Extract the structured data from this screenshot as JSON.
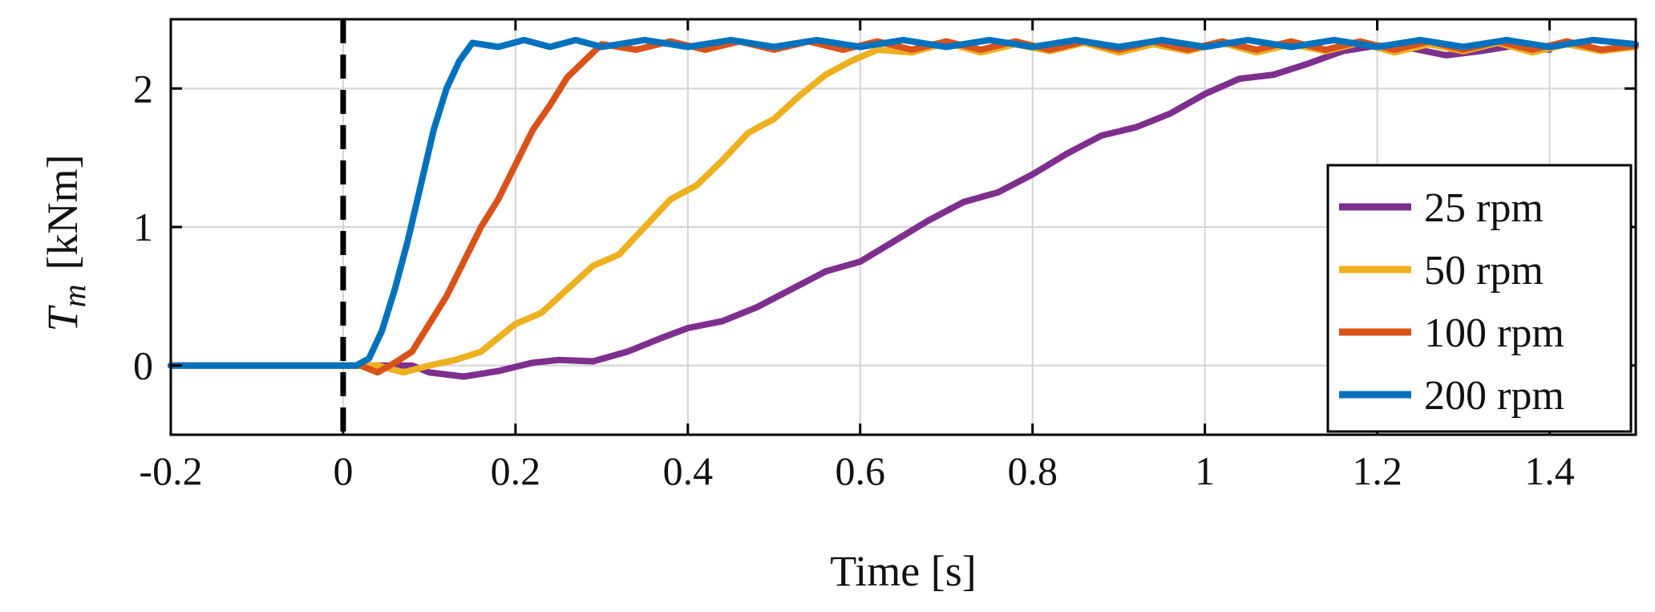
{
  "chart_data": {
    "type": "line",
    "title": "",
    "xlabel": "Time [s]",
    "ylabel_symbol": "T",
    "ylabel_subscript": "m",
    "ylabel_unit": "[kNm]",
    "xlim": [
      -0.2,
      1.5
    ],
    "ylim": [
      -0.5,
      2.5
    ],
    "x_ticks": [
      -0.2,
      0,
      0.2,
      0.4,
      0.6,
      0.8,
      1,
      1.2,
      1.4
    ],
    "x_tick_labels": [
      "-0.2",
      "0",
      "0.2",
      "0.4",
      "0.6",
      "0.8",
      "1",
      "1.2",
      "1.4"
    ],
    "y_ticks": [
      0,
      1,
      2
    ],
    "y_tick_labels": [
      "0",
      "1",
      "2"
    ],
    "grid": true,
    "legend_position": "bottom-right",
    "vline": {
      "x": 0,
      "style": "dashed",
      "color": "#000000"
    },
    "series": [
      {
        "name": "25 rpm",
        "color": "#7E2F8E",
        "x": [
          -0.2,
          -0.1,
          0.0,
          0.05,
          0.08,
          0.1,
          0.14,
          0.18,
          0.22,
          0.25,
          0.29,
          0.33,
          0.37,
          0.4,
          0.44,
          0.48,
          0.52,
          0.56,
          0.6,
          0.64,
          0.68,
          0.72,
          0.76,
          0.8,
          0.84,
          0.88,
          0.92,
          0.96,
          1.0,
          1.04,
          1.08,
          1.12,
          1.16,
          1.2,
          1.24,
          1.28,
          1.32,
          1.36,
          1.4
        ],
        "y": [
          0,
          0,
          0,
          0,
          0,
          -0.05,
          -0.08,
          -0.04,
          0.02,
          0.04,
          0.03,
          0.1,
          0.2,
          0.27,
          0.32,
          0.42,
          0.55,
          0.68,
          0.75,
          0.9,
          1.05,
          1.18,
          1.25,
          1.38,
          1.53,
          1.66,
          1.72,
          1.82,
          1.96,
          2.07,
          2.1,
          2.18,
          2.27,
          2.31,
          2.29,
          2.24,
          2.27,
          2.31,
          2.28
        ]
      },
      {
        "name": "50 rpm",
        "color": "#EDB120",
        "x": [
          -0.2,
          0.0,
          0.04,
          0.07,
          0.1,
          0.13,
          0.16,
          0.2,
          0.23,
          0.26,
          0.29,
          0.32,
          0.35,
          0.38,
          0.41,
          0.44,
          0.47,
          0.5,
          0.53,
          0.56,
          0.59,
          0.62,
          0.66,
          0.7,
          0.74,
          0.78,
          0.82,
          0.86,
          0.9,
          0.94,
          0.98,
          1.02,
          1.06,
          1.1,
          1.14,
          1.18,
          1.22,
          1.26,
          1.3,
          1.34,
          1.38,
          1.42,
          1.46,
          1.5
        ],
        "y": [
          0,
          0,
          0,
          -0.05,
          0,
          0.04,
          0.1,
          0.3,
          0.38,
          0.55,
          0.72,
          0.8,
          1.0,
          1.2,
          1.3,
          1.48,
          1.68,
          1.78,
          1.95,
          2.1,
          2.2,
          2.28,
          2.26,
          2.33,
          2.26,
          2.32,
          2.27,
          2.33,
          2.26,
          2.32,
          2.27,
          2.33,
          2.26,
          2.32,
          2.27,
          2.33,
          2.26,
          2.32,
          2.27,
          2.33,
          2.26,
          2.32,
          2.27,
          2.3
        ]
      },
      {
        "name": "100 rpm",
        "color": "#D95319",
        "x": [
          -0.2,
          0.0,
          0.02,
          0.04,
          0.06,
          0.08,
          0.1,
          0.12,
          0.14,
          0.16,
          0.18,
          0.2,
          0.22,
          0.24,
          0.26,
          0.28,
          0.3,
          0.34,
          0.38,
          0.42,
          0.46,
          0.5,
          0.54,
          0.58,
          0.62,
          0.66,
          0.7,
          0.74,
          0.78,
          0.82,
          0.86,
          0.9,
          0.94,
          0.98,
          1.02,
          1.06,
          1.1,
          1.14,
          1.18,
          1.22,
          1.26,
          1.3,
          1.34,
          1.38,
          1.42,
          1.46,
          1.5
        ],
        "y": [
          0,
          0,
          0,
          -0.05,
          0.02,
          0.1,
          0.3,
          0.5,
          0.75,
          1.0,
          1.2,
          1.45,
          1.7,
          1.88,
          2.08,
          2.2,
          2.32,
          2.28,
          2.34,
          2.28,
          2.34,
          2.28,
          2.34,
          2.28,
          2.34,
          2.28,
          2.34,
          2.28,
          2.34,
          2.28,
          2.34,
          2.28,
          2.34,
          2.28,
          2.34,
          2.28,
          2.34,
          2.28,
          2.34,
          2.28,
          2.34,
          2.28,
          2.34,
          2.28,
          2.34,
          2.28,
          2.31
        ]
      },
      {
        "name": "200 rpm",
        "color": "#0072BD",
        "x": [
          -0.2,
          0.0,
          0.015,
          0.03,
          0.045,
          0.06,
          0.075,
          0.09,
          0.105,
          0.12,
          0.135,
          0.15,
          0.18,
          0.21,
          0.24,
          0.27,
          0.3,
          0.35,
          0.4,
          0.45,
          0.5,
          0.55,
          0.6,
          0.65,
          0.7,
          0.75,
          0.8,
          0.85,
          0.9,
          0.95,
          1.0,
          1.05,
          1.1,
          1.15,
          1.2,
          1.25,
          1.3,
          1.35,
          1.4,
          1.45,
          1.5
        ],
        "y": [
          0,
          0,
          0.0,
          0.05,
          0.25,
          0.55,
          0.9,
          1.3,
          1.7,
          2.0,
          2.2,
          2.33,
          2.3,
          2.35,
          2.3,
          2.35,
          2.3,
          2.35,
          2.3,
          2.35,
          2.3,
          2.35,
          2.3,
          2.35,
          2.3,
          2.35,
          2.3,
          2.35,
          2.3,
          2.35,
          2.3,
          2.35,
          2.3,
          2.35,
          2.3,
          2.35,
          2.3,
          2.35,
          2.3,
          2.35,
          2.32
        ]
      }
    ]
  }
}
